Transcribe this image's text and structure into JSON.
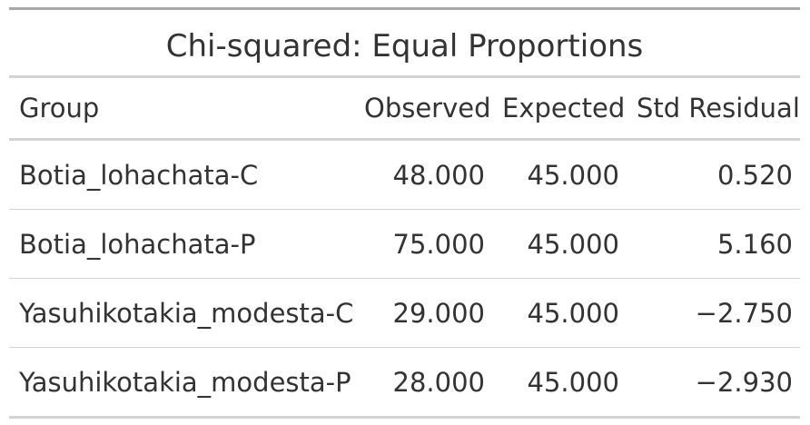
{
  "table": {
    "title": "Chi-squared: Equal Proportions",
    "columns": [
      "Group",
      "Observed",
      "Expected",
      "Std Residual"
    ],
    "rows": [
      {
        "group": "Botia_lohachata-C",
        "observed": "48.000",
        "expected": "45.000",
        "std_residual": "0.520"
      },
      {
        "group": "Botia_lohachata-P",
        "observed": "75.000",
        "expected": "45.000",
        "std_residual": "5.160"
      },
      {
        "group": "Yasuhikotakia_modesta-C",
        "observed": "29.000",
        "expected": "45.000",
        "std_residual": "−2.750"
      },
      {
        "group": "Yasuhikotakia_modesta-P",
        "observed": "28.000",
        "expected": "45.000",
        "std_residual": "−2.930"
      }
    ]
  }
}
